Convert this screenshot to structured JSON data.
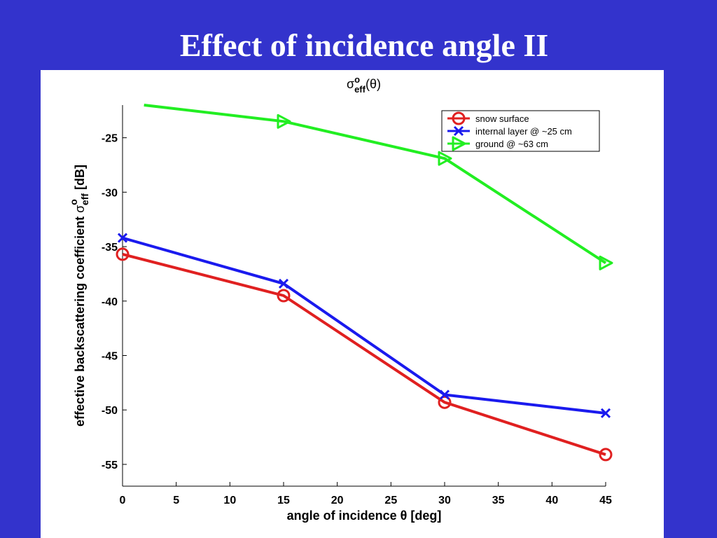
{
  "slide": {
    "title": "Effect of incidence angle II",
    "background": "#3333cc"
  },
  "chart_data": {
    "type": "line",
    "title": {
      "base": "σ",
      "sup": "o",
      "sub": "eff",
      "suffix": "(θ)"
    },
    "xlabel": "angle of incidence θ [deg]",
    "ylabel": {
      "text": "effective backscattering coefficient",
      "base": "σ",
      "sup": "o",
      "sub": "eff",
      "unit": "[dB]"
    },
    "xlim": [
      0,
      45
    ],
    "ylim": [
      -57,
      -22
    ],
    "xticks": [
      0,
      5,
      10,
      15,
      20,
      25,
      30,
      35,
      40,
      45
    ],
    "yticks": [
      -25,
      -30,
      -35,
      -40,
      -45,
      -50,
      -55
    ],
    "grid": false,
    "legend_position": "top-right",
    "series": [
      {
        "name": "snow surface",
        "color": "#e02020",
        "marker": "circle",
        "x": [
          0,
          15,
          30,
          45
        ],
        "y": [
          -35.7,
          -39.5,
          -49.3,
          -54.1
        ],
        "marker_x": [
          0,
          15,
          30,
          45
        ]
      },
      {
        "name": "internal layer @ ~25 cm",
        "color": "#1a1aee",
        "marker": "x",
        "x": [
          0,
          15,
          30,
          45
        ],
        "y": [
          -34.2,
          -38.4,
          -48.6,
          -50.3
        ],
        "marker_x": [
          0,
          15,
          30,
          45
        ]
      },
      {
        "name": "ground @ ~63 cm",
        "color": "#22ee22",
        "marker": "triangle-right",
        "x": [
          2,
          15,
          30,
          45
        ],
        "y": [
          -22.0,
          -23.5,
          -26.9,
          -36.5
        ],
        "marker_x": [
          15,
          30,
          45
        ]
      }
    ]
  }
}
